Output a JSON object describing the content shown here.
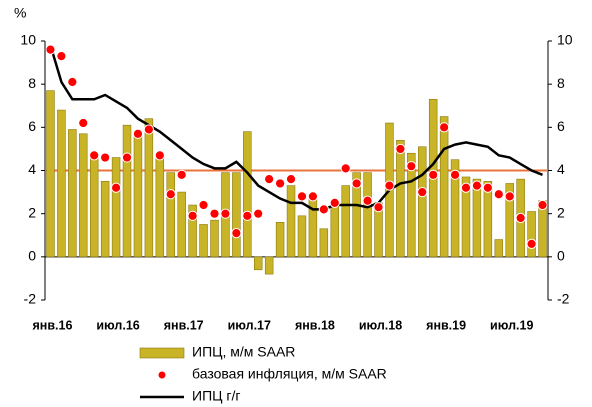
{
  "chart_data": {
    "type": "bar-dot-line",
    "y_unit": "%",
    "categories": [
      "янв.16",
      null,
      null,
      null,
      null,
      null,
      "июл.16",
      null,
      null,
      null,
      null,
      null,
      "янв.17",
      null,
      null,
      null,
      null,
      null,
      "июл.17",
      null,
      null,
      null,
      null,
      null,
      "янв.18",
      null,
      null,
      null,
      null,
      null,
      "июл.18",
      null,
      null,
      null,
      null,
      null,
      "янв.19",
      null,
      null,
      null,
      null,
      null,
      "июл.19",
      null,
      null,
      null
    ],
    "series": [
      {
        "name": "ИПЦ, м/м SAAR",
        "kind": "bar",
        "color": "#c9b427",
        "values": [
          7.7,
          6.8,
          5.9,
          5.7,
          4.6,
          3.5,
          4.6,
          6.1,
          5.8,
          6.4,
          4.6,
          3.9,
          3.0,
          2.4,
          1.5,
          1.7,
          3.9,
          3.9,
          5.8,
          -0.6,
          -0.8,
          1.6,
          3.3,
          1.9,
          2.8,
          1.3,
          2.6,
          3.3,
          3.9,
          3.9,
          2.5,
          6.2,
          5.4,
          4.8,
          5.1,
          7.3,
          6.5,
          4.5,
          3.7,
          3.6,
          3.5,
          0.8,
          3.4,
          3.6,
          2.1,
          2.6
        ]
      },
      {
        "name": "базовая инфляция, м/м SAAR",
        "kind": "dot",
        "color": "#ff0000",
        "values": [
          9.6,
          9.3,
          8.1,
          6.2,
          4.7,
          4.6,
          3.2,
          4.6,
          5.7,
          5.9,
          4.7,
          2.9,
          3.8,
          1.9,
          2.4,
          2.0,
          2.0,
          1.1,
          1.9,
          2.0,
          3.6,
          3.4,
          3.6,
          2.8,
          2.8,
          2.2,
          2.5,
          4.1,
          3.4,
          2.6,
          2.3,
          3.3,
          5.0,
          4.2,
          3.0,
          3.8,
          6.0,
          3.8,
          3.2,
          3.3,
          3.2,
          2.9,
          2.8,
          1.8,
          0.6,
          2.4
        ]
      },
      {
        "name": "ИПЦ г/г",
        "kind": "line",
        "color": "#000000",
        "values": [
          9.8,
          8.1,
          7.3,
          7.3,
          7.3,
          7.5,
          7.2,
          6.9,
          6.4,
          6.1,
          5.8,
          5.4,
          5.0,
          4.6,
          4.3,
          4.1,
          4.1,
          4.4,
          3.9,
          3.3,
          3.0,
          2.7,
          2.5,
          2.5,
          2.2,
          2.2,
          2.4,
          2.4,
          2.4,
          2.3,
          2.5,
          3.1,
          3.4,
          3.5,
          3.8,
          4.3,
          5.0,
          5.2,
          5.3,
          5.2,
          5.1,
          4.7,
          4.6,
          4.3,
          4.0,
          3.8
        ]
      }
    ],
    "reference_line": {
      "value": 4,
      "color": "#e8743b"
    },
    "ylim": [
      -2,
      10
    ],
    "yticks": [
      -2,
      0,
      2,
      4,
      6,
      8,
      10
    ],
    "y2lim": [
      -2,
      10
    ],
    "y2ticks": [
      -2,
      0,
      2,
      4,
      6,
      8,
      10
    ]
  }
}
